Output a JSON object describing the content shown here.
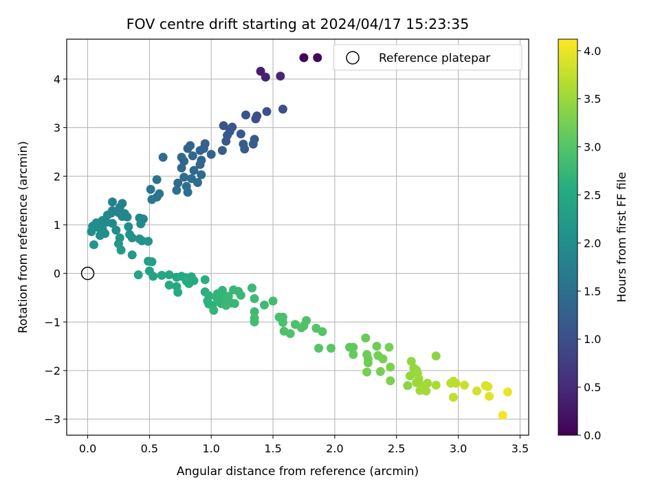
{
  "chart_data": {
    "type": "scatter",
    "title": "FOV centre drift starting at 2024/04/17 15:23:35",
    "xlabel": "Angular distance from reference (arcmin)",
    "ylabel": "Rotation from reference (arcmin)",
    "xlim": [
      -0.17,
      3.57
    ],
    "ylim": [
      -3.33,
      4.82
    ],
    "xticks": [
      0.0,
      0.5,
      1.0,
      1.5,
      2.0,
      2.5,
      3.0,
      3.5
    ],
    "xtick_labels": [
      "0.0",
      "0.5",
      "1.0",
      "1.5",
      "2.0",
      "2.5",
      "3.0",
      "3.5"
    ],
    "yticks": [
      -3,
      -2,
      -1,
      0,
      1,
      2,
      3,
      4
    ],
    "ytick_labels": [
      "−3",
      "−2",
      "−1",
      "0",
      "1",
      "2",
      "3",
      "4"
    ],
    "grid": true,
    "legend": {
      "position": "top-right",
      "entries": [
        "Reference platepar"
      ]
    },
    "reference_point": {
      "x": 0.0,
      "y": 0.0
    },
    "colorbar": {
      "label": "Hours from first FF file",
      "colormap": "viridis",
      "range": [
        0.0,
        4.12
      ],
      "ticks": [
        0.0,
        0.5,
        1.0,
        1.5,
        2.0,
        2.5,
        3.0,
        3.5,
        4.0
      ],
      "tick_labels": [
        "0.0",
        "0.5",
        "1.0",
        "1.5",
        "2.0",
        "2.5",
        "3.0",
        "3.5",
        "4.0"
      ]
    },
    "series": [
      {
        "values": [
          {
            "x": 1.75,
            "y": 4.44,
            "c": 0.05
          },
          {
            "x": 1.86,
            "y": 4.44,
            "c": 0.08
          },
          {
            "x": 1.4,
            "y": 4.16,
            "c": 0.35
          },
          {
            "x": 1.44,
            "y": 4.04,
            "c": 0.4
          },
          {
            "x": 1.56,
            "y": 4.06,
            "c": 0.45
          },
          {
            "x": 1.58,
            "y": 3.38,
            "c": 1.0
          },
          {
            "x": 1.45,
            "y": 3.33,
            "c": 1.0
          },
          {
            "x": 1.37,
            "y": 3.24,
            "c": 0.95
          },
          {
            "x": 1.36,
            "y": 3.18,
            "c": 1.0
          },
          {
            "x": 1.28,
            "y": 3.26,
            "c": 1.05
          },
          {
            "x": 1.1,
            "y": 3.04,
            "c": 1.05
          },
          {
            "x": 1.17,
            "y": 3.01,
            "c": 1.1
          },
          {
            "x": 1.15,
            "y": 2.92,
            "c": 1.1
          },
          {
            "x": 1.13,
            "y": 2.84,
            "c": 1.15
          },
          {
            "x": 1.12,
            "y": 2.72,
            "c": 1.15
          },
          {
            "x": 1.09,
            "y": 2.53,
            "c": 1.2
          },
          {
            "x": 1.24,
            "y": 2.87,
            "c": 1.15
          },
          {
            "x": 1.26,
            "y": 2.66,
            "c": 1.2
          },
          {
            "x": 1.27,
            "y": 2.56,
            "c": 1.2
          },
          {
            "x": 1.35,
            "y": 2.76,
            "c": 1.15
          },
          {
            "x": 1.34,
            "y": 2.66,
            "c": 1.2
          },
          {
            "x": 0.95,
            "y": 2.67,
            "c": 1.25
          },
          {
            "x": 0.94,
            "y": 2.57,
            "c": 1.25
          },
          {
            "x": 0.91,
            "y": 2.53,
            "c": 1.3
          },
          {
            "x": 0.83,
            "y": 2.63,
            "c": 1.3
          },
          {
            "x": 0.81,
            "y": 2.57,
            "c": 1.3
          },
          {
            "x": 0.85,
            "y": 2.42,
            "c": 1.35
          },
          {
            "x": 0.76,
            "y": 2.39,
            "c": 1.35
          },
          {
            "x": 0.78,
            "y": 2.31,
            "c": 1.35
          },
          {
            "x": 0.92,
            "y": 2.33,
            "c": 1.3
          },
          {
            "x": 0.91,
            "y": 2.24,
            "c": 1.35
          },
          {
            "x": 1.0,
            "y": 2.45,
            "c": 1.3
          },
          {
            "x": 0.61,
            "y": 2.39,
            "c": 1.45
          },
          {
            "x": 0.76,
            "y": 2.17,
            "c": 1.4
          },
          {
            "x": 0.86,
            "y": 2.12,
            "c": 1.4
          },
          {
            "x": 0.92,
            "y": 2.03,
            "c": 1.4
          },
          {
            "x": 0.78,
            "y": 1.98,
            "c": 1.45
          },
          {
            "x": 0.84,
            "y": 1.95,
            "c": 1.45
          },
          {
            "x": 0.89,
            "y": 1.87,
            "c": 1.45
          },
          {
            "x": 0.73,
            "y": 1.86,
            "c": 1.45
          },
          {
            "x": 0.8,
            "y": 1.79,
            "c": 1.5
          },
          {
            "x": 0.72,
            "y": 1.71,
            "c": 1.5
          },
          {
            "x": 0.81,
            "y": 1.67,
            "c": 1.5
          },
          {
            "x": 0.56,
            "y": 1.93,
            "c": 1.55
          },
          {
            "x": 0.51,
            "y": 1.73,
            "c": 1.6
          },
          {
            "x": 0.58,
            "y": 1.64,
            "c": 1.6
          },
          {
            "x": 0.56,
            "y": 1.57,
            "c": 1.6
          },
          {
            "x": 0.52,
            "y": 1.52,
            "c": 1.65
          },
          {
            "x": 0.2,
            "y": 1.47,
            "c": 1.8
          },
          {
            "x": 0.28,
            "y": 1.44,
            "c": 1.8
          },
          {
            "x": 0.26,
            "y": 1.36,
            "c": 1.8
          },
          {
            "x": 0.2,
            "y": 1.29,
            "c": 1.85
          },
          {
            "x": 0.19,
            "y": 1.24,
            "c": 1.85
          },
          {
            "x": 0.25,
            "y": 1.25,
            "c": 1.85
          },
          {
            "x": 0.3,
            "y": 1.23,
            "c": 1.85
          },
          {
            "x": 0.16,
            "y": 1.2,
            "c": 1.9
          },
          {
            "x": 0.28,
            "y": 1.17,
            "c": 1.9
          },
          {
            "x": 0.32,
            "y": 1.16,
            "c": 1.9
          },
          {
            "x": 0.42,
            "y": 1.14,
            "c": 1.9
          },
          {
            "x": 0.45,
            "y": 1.12,
            "c": 1.9
          },
          {
            "x": 0.12,
            "y": 1.09,
            "c": 1.95
          },
          {
            "x": 0.15,
            "y": 1.05,
            "c": 1.95
          },
          {
            "x": 0.2,
            "y": 1.03,
            "c": 1.95
          },
          {
            "x": 0.43,
            "y": 1.02,
            "c": 1.95
          },
          {
            "x": 0.07,
            "y": 1.04,
            "c": 2.0
          },
          {
            "x": 0.04,
            "y": 0.97,
            "c": 2.0
          },
          {
            "x": 0.09,
            "y": 0.94,
            "c": 2.0
          },
          {
            "x": 0.12,
            "y": 0.91,
            "c": 2.0
          },
          {
            "x": 0.23,
            "y": 0.89,
            "c": 2.0
          },
          {
            "x": 0.33,
            "y": 0.96,
            "c": 2.0
          },
          {
            "x": 0.03,
            "y": 0.86,
            "c": 2.05
          },
          {
            "x": 0.1,
            "y": 0.78,
            "c": 2.05
          },
          {
            "x": 0.14,
            "y": 0.82,
            "c": 2.05
          },
          {
            "x": 0.34,
            "y": 0.8,
            "c": 2.05
          },
          {
            "x": 0.36,
            "y": 0.73,
            "c": 2.1
          },
          {
            "x": 0.26,
            "y": 0.73,
            "c": 2.1
          },
          {
            "x": 0.42,
            "y": 0.71,
            "c": 2.1
          },
          {
            "x": 0.44,
            "y": 0.67,
            "c": 2.1
          },
          {
            "x": 0.49,
            "y": 0.66,
            "c": 2.15
          },
          {
            "x": 0.25,
            "y": 0.61,
            "c": 2.15
          },
          {
            "x": 0.05,
            "y": 0.59,
            "c": 2.15
          },
          {
            "x": 0.27,
            "y": 0.48,
            "c": 2.2
          },
          {
            "x": 0.36,
            "y": 0.38,
            "c": 2.2
          },
          {
            "x": 0.49,
            "y": 0.25,
            "c": 2.3
          },
          {
            "x": 0.52,
            "y": 0.24,
            "c": 2.3
          },
          {
            "x": 0.5,
            "y": 0.05,
            "c": 2.35
          },
          {
            "x": 0.41,
            "y": -0.03,
            "c": 2.4
          },
          {
            "x": 0.53,
            "y": -0.06,
            "c": 2.4
          },
          {
            "x": 0.6,
            "y": -0.04,
            "c": 2.45
          },
          {
            "x": 0.66,
            "y": -0.03,
            "c": 2.45
          },
          {
            "x": 0.72,
            "y": -0.08,
            "c": 2.45
          },
          {
            "x": 0.76,
            "y": -0.06,
            "c": 2.5
          },
          {
            "x": 0.79,
            "y": -0.09,
            "c": 2.5
          },
          {
            "x": 0.84,
            "y": -0.07,
            "c": 2.5
          },
          {
            "x": 0.66,
            "y": -0.24,
            "c": 2.5
          },
          {
            "x": 0.72,
            "y": -0.27,
            "c": 2.5
          },
          {
            "x": 0.73,
            "y": -0.39,
            "c": 2.5
          },
          {
            "x": 0.8,
            "y": -0.16,
            "c": 2.55
          },
          {
            "x": 0.82,
            "y": -0.21,
            "c": 2.55
          },
          {
            "x": 0.86,
            "y": -0.15,
            "c": 2.55
          },
          {
            "x": 0.95,
            "y": -0.13,
            "c": 2.6
          },
          {
            "x": 0.95,
            "y": -0.38,
            "c": 2.6
          },
          {
            "x": 0.98,
            "y": -0.46,
            "c": 2.65
          },
          {
            "x": 0.97,
            "y": -0.57,
            "c": 2.65
          },
          {
            "x": 0.98,
            "y": -0.63,
            "c": 2.65
          },
          {
            "x": 1.01,
            "y": -0.66,
            "c": 2.65
          },
          {
            "x": 1.02,
            "y": -0.76,
            "c": 2.7
          },
          {
            "x": 1.04,
            "y": -0.49,
            "c": 2.7
          },
          {
            "x": 1.05,
            "y": -0.42,
            "c": 2.7
          },
          {
            "x": 1.06,
            "y": -0.55,
            "c": 2.7
          },
          {
            "x": 1.08,
            "y": -0.62,
            "c": 2.7
          },
          {
            "x": 1.09,
            "y": -0.35,
            "c": 2.7
          },
          {
            "x": 1.1,
            "y": -0.46,
            "c": 2.7
          },
          {
            "x": 1.12,
            "y": -0.66,
            "c": 2.75
          },
          {
            "x": 1.13,
            "y": -0.56,
            "c": 2.75
          },
          {
            "x": 1.14,
            "y": -0.47,
            "c": 2.75
          },
          {
            "x": 1.16,
            "y": -0.61,
            "c": 2.75
          },
          {
            "x": 1.18,
            "y": -0.34,
            "c": 2.75
          },
          {
            "x": 1.19,
            "y": -0.62,
            "c": 2.75
          },
          {
            "x": 1.22,
            "y": -0.37,
            "c": 2.75
          },
          {
            "x": 1.24,
            "y": -0.45,
            "c": 2.75
          },
          {
            "x": 1.33,
            "y": -0.3,
            "c": 2.8
          },
          {
            "x": 1.35,
            "y": -0.52,
            "c": 2.8
          },
          {
            "x": 1.35,
            "y": -0.79,
            "c": 2.8
          },
          {
            "x": 1.35,
            "y": -0.92,
            "c": 2.85
          },
          {
            "x": 1.35,
            "y": -1.0,
            "c": 2.85
          },
          {
            "x": 1.43,
            "y": -0.65,
            "c": 2.8
          },
          {
            "x": 1.5,
            "y": -0.57,
            "c": 2.85
          },
          {
            "x": 1.55,
            "y": -0.9,
            "c": 2.9
          },
          {
            "x": 1.58,
            "y": -0.9,
            "c": 2.9
          },
          {
            "x": 1.58,
            "y": -1.01,
            "c": 2.9
          },
          {
            "x": 1.59,
            "y": -1.19,
            "c": 2.95
          },
          {
            "x": 1.64,
            "y": -1.24,
            "c": 2.95
          },
          {
            "x": 1.68,
            "y": -1.05,
            "c": 2.95
          },
          {
            "x": 1.73,
            "y": -1.12,
            "c": 2.95
          },
          {
            "x": 1.75,
            "y": -1.08,
            "c": 2.95
          },
          {
            "x": 1.77,
            "y": -0.97,
            "c": 2.95
          },
          {
            "x": 1.85,
            "y": -1.13,
            "c": 3.0
          },
          {
            "x": 1.87,
            "y": -1.54,
            "c": 3.0
          },
          {
            "x": 1.9,
            "y": -1.2,
            "c": 3.0
          },
          {
            "x": 1.97,
            "y": -1.54,
            "c": 3.05
          },
          {
            "x": 2.12,
            "y": -1.52,
            "c": 3.1
          },
          {
            "x": 2.15,
            "y": -1.52,
            "c": 3.1
          },
          {
            "x": 2.15,
            "y": -1.67,
            "c": 3.15
          },
          {
            "x": 2.25,
            "y": -1.33,
            "c": 3.15
          },
          {
            "x": 2.26,
            "y": -1.67,
            "c": 3.2
          },
          {
            "x": 2.27,
            "y": -1.76,
            "c": 3.2
          },
          {
            "x": 2.27,
            "y": -1.84,
            "c": 3.2
          },
          {
            "x": 2.26,
            "y": -2.03,
            "c": 3.25
          },
          {
            "x": 2.34,
            "y": -1.5,
            "c": 3.2
          },
          {
            "x": 2.35,
            "y": -1.69,
            "c": 3.25
          },
          {
            "x": 2.39,
            "y": -1.76,
            "c": 3.25
          },
          {
            "x": 2.37,
            "y": -2.02,
            "c": 3.25
          },
          {
            "x": 2.44,
            "y": -1.52,
            "c": 3.25
          },
          {
            "x": 2.45,
            "y": -1.93,
            "c": 3.3
          },
          {
            "x": 2.45,
            "y": -2.21,
            "c": 3.3
          },
          {
            "x": 2.59,
            "y": -2.31,
            "c": 3.4
          },
          {
            "x": 2.62,
            "y": -1.81,
            "c": 3.45
          },
          {
            "x": 2.61,
            "y": -2.11,
            "c": 3.45
          },
          {
            "x": 2.64,
            "y": -1.95,
            "c": 3.45
          },
          {
            "x": 2.66,
            "y": -1.99,
            "c": 3.45
          },
          {
            "x": 2.67,
            "y": -2.05,
            "c": 3.5
          },
          {
            "x": 2.66,
            "y": -2.25,
            "c": 3.5
          },
          {
            "x": 2.68,
            "y": -2.17,
            "c": 3.5
          },
          {
            "x": 2.69,
            "y": -2.41,
            "c": 3.55
          },
          {
            "x": 2.72,
            "y": -2.31,
            "c": 3.55
          },
          {
            "x": 2.74,
            "y": -2.42,
            "c": 3.55
          },
          {
            "x": 2.75,
            "y": -2.26,
            "c": 3.55
          },
          {
            "x": 2.82,
            "y": -1.7,
            "c": 3.4
          },
          {
            "x": 2.82,
            "y": -2.3,
            "c": 3.6
          },
          {
            "x": 2.94,
            "y": -2.26,
            "c": 3.7
          },
          {
            "x": 2.96,
            "y": -2.22,
            "c": 3.7
          },
          {
            "x": 2.98,
            "y": -2.26,
            "c": 3.7
          },
          {
            "x": 2.96,
            "y": -2.55,
            "c": 3.75
          },
          {
            "x": 3.05,
            "y": -2.3,
            "c": 3.8
          },
          {
            "x": 3.15,
            "y": -2.42,
            "c": 3.85
          },
          {
            "x": 3.22,
            "y": -2.31,
            "c": 3.9
          },
          {
            "x": 3.24,
            "y": -2.33,
            "c": 3.9
          },
          {
            "x": 3.25,
            "y": -2.53,
            "c": 3.95
          },
          {
            "x": 3.36,
            "y": -2.92,
            "c": 4.05
          },
          {
            "x": 3.4,
            "y": -2.44,
            "c": 4.0
          }
        ]
      }
    ]
  }
}
